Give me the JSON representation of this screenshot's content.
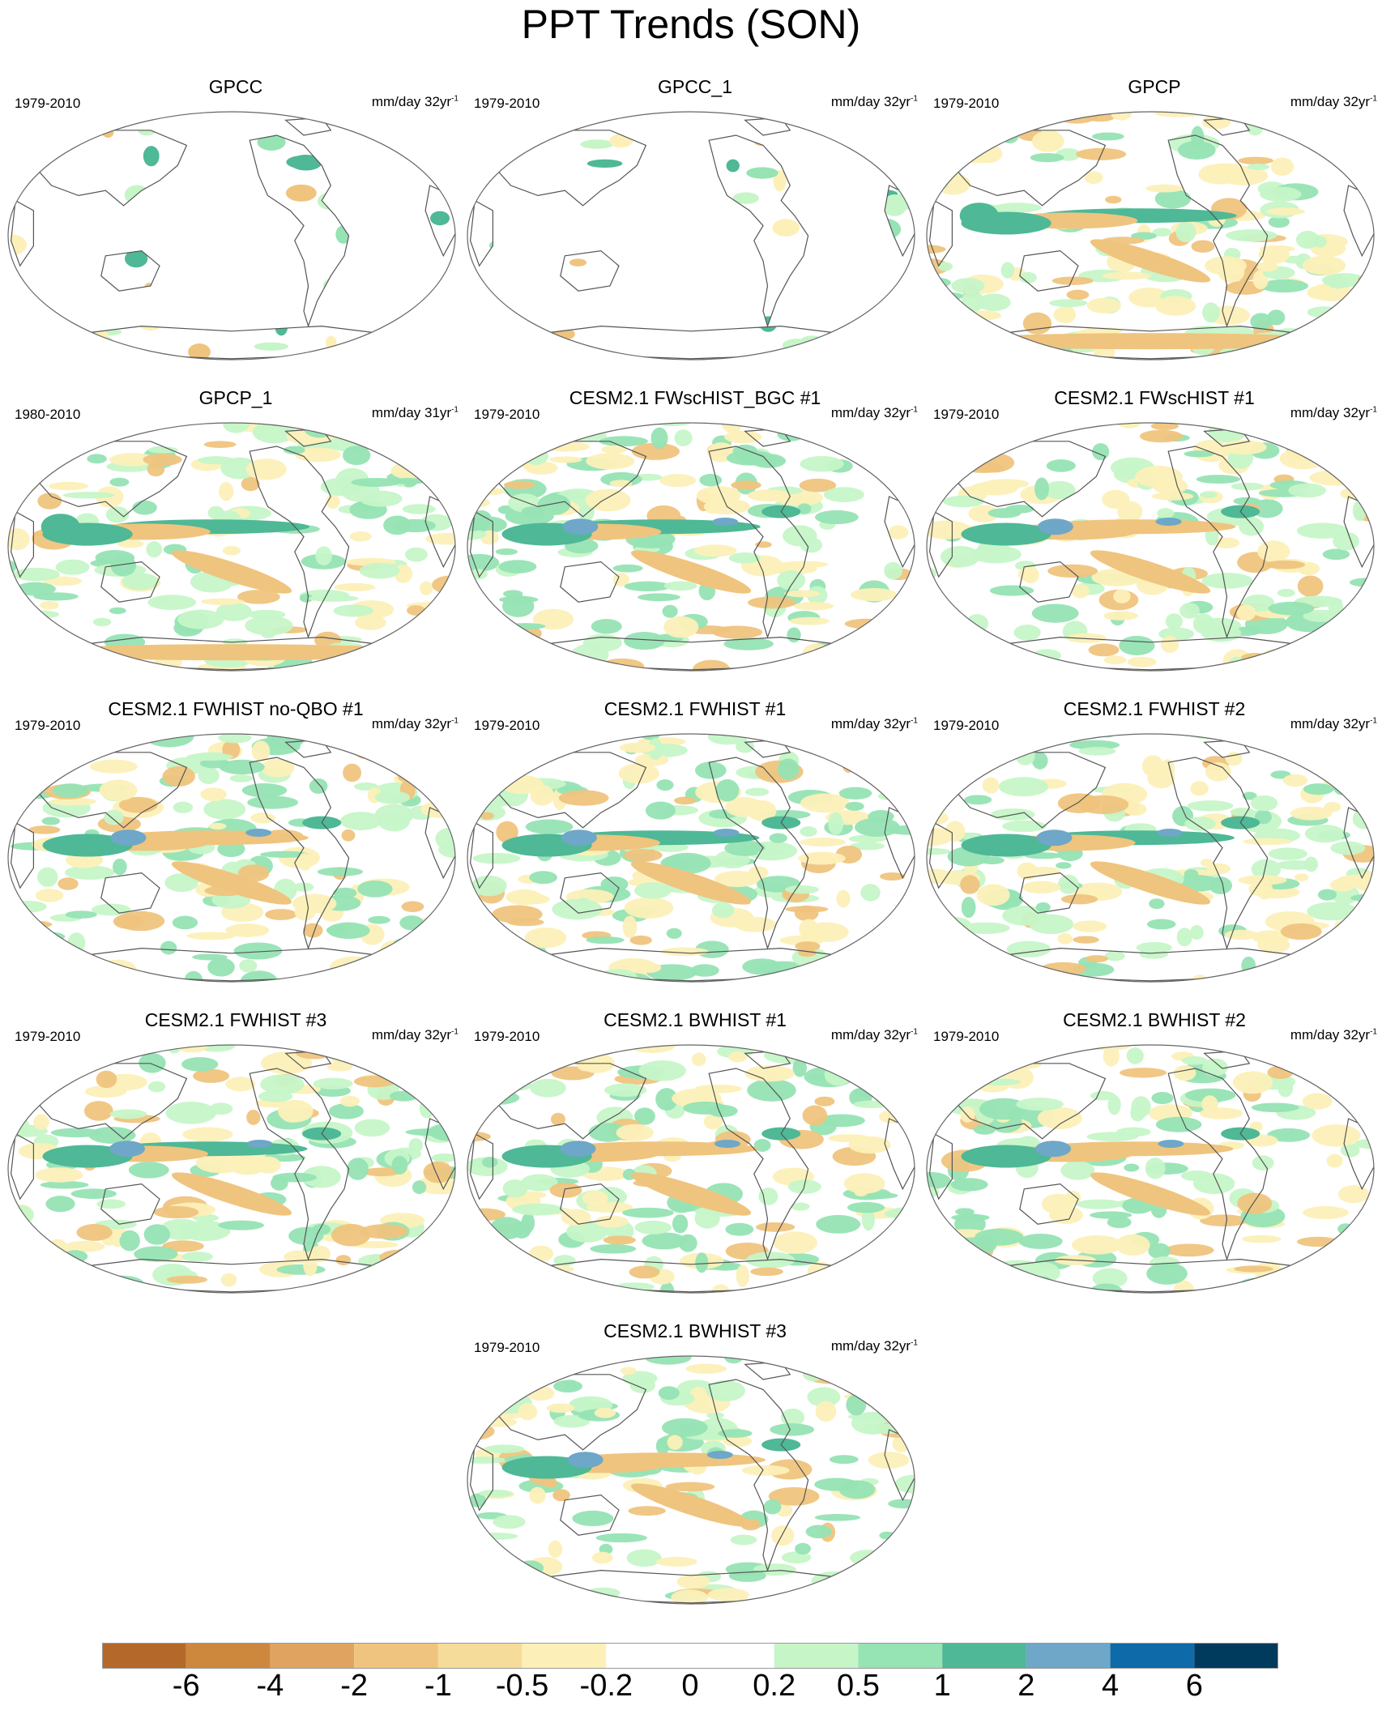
{
  "figure_title": "PPT Trends (SON)",
  "panels": [
    {
      "title": "GPCC",
      "period": "1979-2010",
      "units": "mm/day 32yr",
      "units_sup": "-1",
      "style": "landonly"
    },
    {
      "title": "GPCC_1",
      "period": "1979-2010",
      "units": "mm/day 32yr",
      "units_sup": "-1",
      "style": "landonly"
    },
    {
      "title": "GPCP",
      "period": "1979-2010",
      "units": "mm/day 32yr",
      "units_sup": "-1",
      "style": "obs"
    },
    {
      "title": "GPCP_1",
      "period": "1980-2010",
      "units": "mm/day 31yr",
      "units_sup": "-1",
      "style": "obs"
    },
    {
      "title": "CESM2.1 FWscHIST_BGC #1",
      "period": "1979-2010",
      "units": "mm/day 32yr",
      "units_sup": "-1",
      "style": "model"
    },
    {
      "title": "CESM2.1 FWscHIST #1",
      "period": "1979-2010",
      "units": "mm/day 32yr",
      "units_sup": "-1",
      "style": "model"
    },
    {
      "title": "CESM2.1 FWHIST no-QBO #1",
      "period": "1979-2010",
      "units": "mm/day 32yr",
      "units_sup": "-1",
      "style": "model"
    },
    {
      "title": "CESM2.1 FWHIST #1",
      "period": "1979-2010",
      "units": "mm/day 32yr",
      "units_sup": "-1",
      "style": "model"
    },
    {
      "title": "CESM2.1 FWHIST #2",
      "period": "1979-2010",
      "units": "mm/day 32yr",
      "units_sup": "-1",
      "style": "model"
    },
    {
      "title": "CESM2.1 FWHIST #3",
      "period": "1979-2010",
      "units": "mm/day 32yr",
      "units_sup": "-1",
      "style": "model"
    },
    {
      "title": "CESM2.1 BWHIST #1",
      "period": "1979-2010",
      "units": "mm/day 32yr",
      "units_sup": "-1",
      "style": "model"
    },
    {
      "title": "CESM2.1 BWHIST #2",
      "period": "1979-2010",
      "units": "mm/day 32yr",
      "units_sup": "-1",
      "style": "model"
    },
    {
      "title": "CESM2.1 BWHIST #3",
      "period": "1979-2010",
      "units": "mm/day 32yr",
      "units_sup": "-1",
      "style": "model"
    }
  ],
  "colorbar": {
    "colors": [
      "#b4692a",
      "#cd883e",
      "#e0a460",
      "#efc47e",
      "#f6dc9a",
      "#fcf0b8",
      "#ffffff",
      "#ffffff",
      "#c6f5c8",
      "#96e3b4",
      "#4fb896",
      "#6ea7c8",
      "#0e6aa8",
      "#003a5c"
    ],
    "labels": [
      "-6",
      "-4",
      "-2",
      "-1",
      "-0.5",
      "-0.2",
      "0",
      "0.2",
      "0.5",
      "1",
      "2",
      "4",
      "6"
    ]
  },
  "map_colors": {
    "dry_strong": "#cd883e",
    "dry": "#efc47e",
    "dry_light": "#fcf0b8",
    "wet_light": "#c6f5c8",
    "wet": "#96e3b4",
    "wet_strong": "#4fb896",
    "wet_blue": "#6ea7c8",
    "wet_deep": "#0e6aa8",
    "coast": "#555555"
  }
}
